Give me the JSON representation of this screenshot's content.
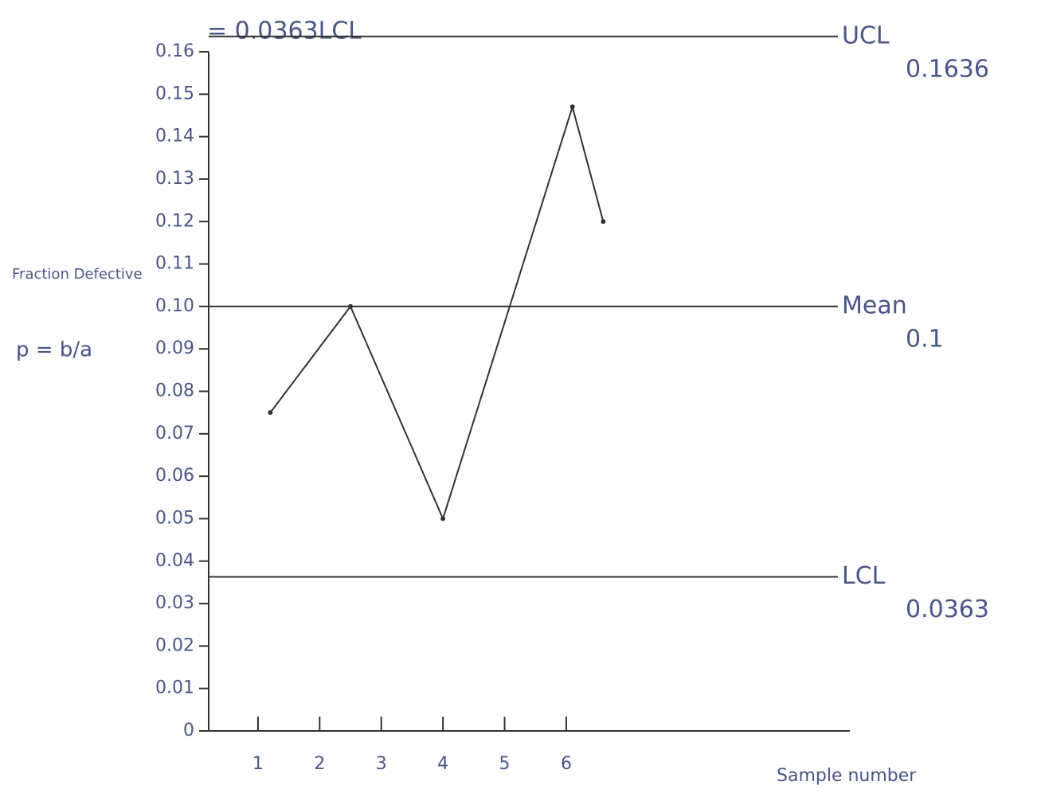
{
  "chart_data": {
    "type": "line",
    "top_note": "= 0.0363LCL",
    "y_label": "Fraction Defective",
    "y_formula": "p = b/a",
    "x_label": "Sample number",
    "x": [
      1.2,
      2.5,
      4,
      6.1,
      6.6
    ],
    "values": [
      0.075,
      0.1,
      0.05,
      0.147,
      0.12
    ],
    "color": "#333333",
    "xlim": [
      0.2,
      10.6
    ],
    "xticks": [
      1,
      2,
      3,
      4,
      5,
      6
    ],
    "ylim": [
      0,
      0.16
    ],
    "yticks": [
      0,
      0.01,
      0.02,
      0.03,
      0.04,
      0.05,
      0.06,
      0.07,
      0.08,
      0.09,
      {
        "value": 0.1,
        "label": "0.10"
      },
      0.11,
      0.12,
      0.13,
      0.14,
      0.15,
      0.16
    ],
    "control_lines": [
      {
        "name": "UCL",
        "value": 0.1636
      },
      {
        "name": "Mean",
        "value": 0.1
      },
      {
        "name": "LCL",
        "value": 0.0363
      }
    ]
  }
}
